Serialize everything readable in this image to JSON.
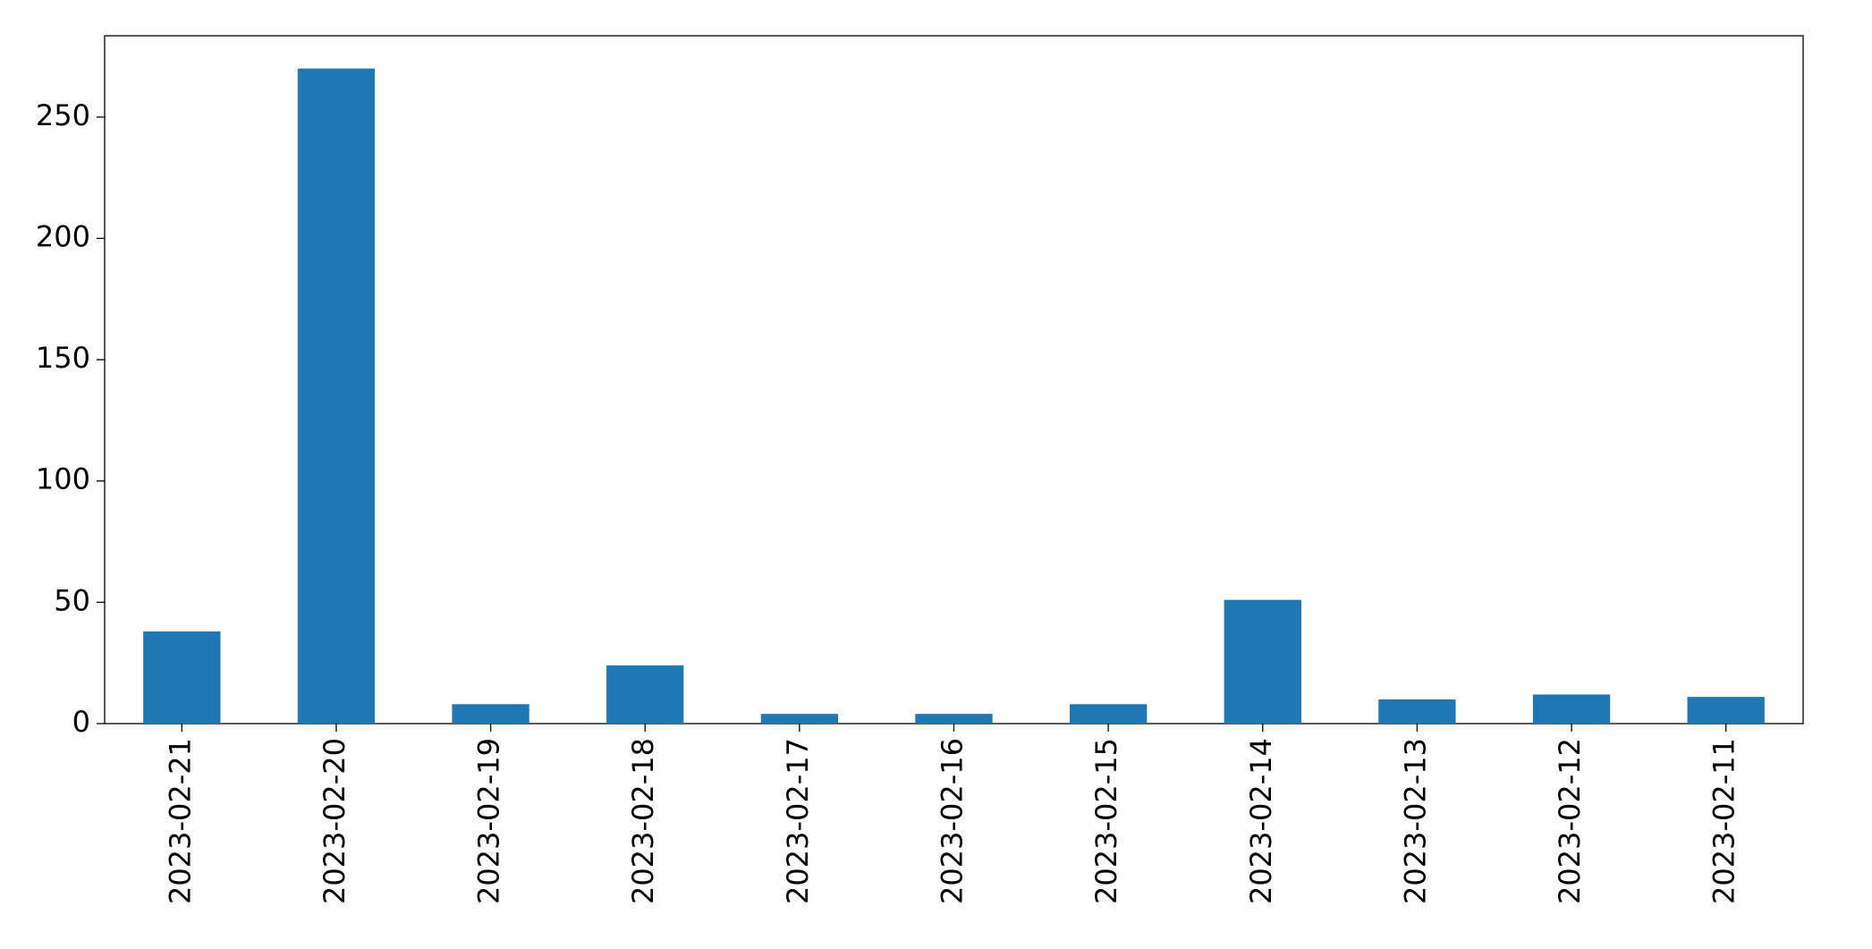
{
  "chart_data": {
    "type": "bar",
    "categories": [
      "2023-02-21",
      "2023-02-20",
      "2023-02-19",
      "2023-02-18",
      "2023-02-17",
      "2023-02-16",
      "2023-02-15",
      "2023-02-14",
      "2023-02-13",
      "2023-02-12",
      "2023-02-11"
    ],
    "values": [
      38,
      270,
      8,
      24,
      4,
      4,
      8,
      51,
      10,
      12,
      11
    ],
    "color": "#1f77b4",
    "ylim": [
      0,
      283.5
    ],
    "yticks": [
      0,
      50,
      100,
      150,
      200,
      250
    ],
    "grid": false
  }
}
